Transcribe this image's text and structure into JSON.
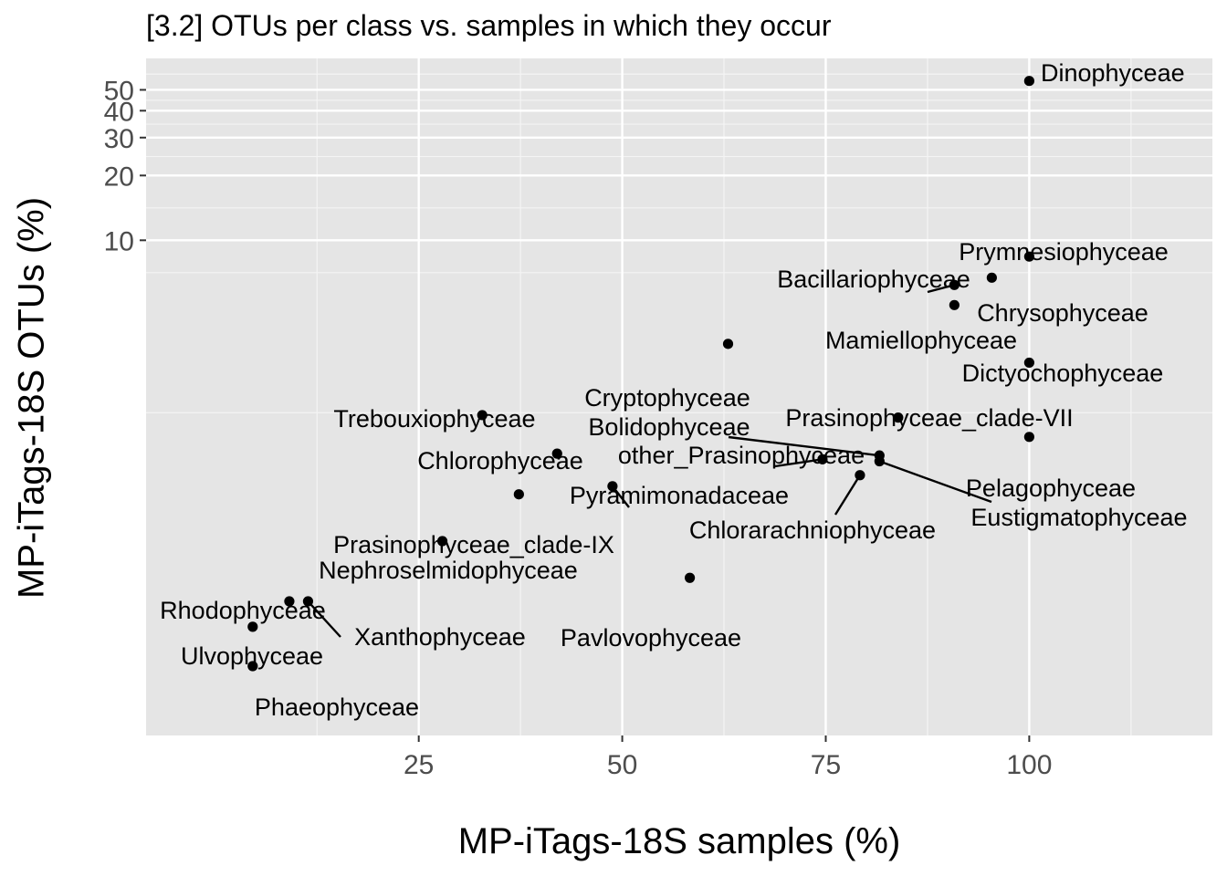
{
  "chart_data": {
    "type": "scatter",
    "title": "[3.2] OTUs per class vs. samples in which they occur",
    "xlabel": "MP-iTags-18S samples (%)",
    "ylabel": "MP-iTags-18S OTUs (%)",
    "xlim": [
      -8.5,
      122.5
    ],
    "ylim": [
      0.05,
      70
    ],
    "y_scale": "log",
    "grid": true,
    "x_ticks": [
      25,
      50,
      75,
      100
    ],
    "y_ticks": [
      10,
      20,
      30,
      40,
      50
    ],
    "points": [
      {
        "label": "Dinophyceae",
        "x": 100,
        "y": 55
      },
      {
        "label": "Prymnesiophyceae",
        "x": 100,
        "y": 8.4
      },
      {
        "label": "Bacillariophyceae",
        "x": 90.8,
        "y": 6.2
      },
      {
        "label": "Chrysophyceae",
        "x": 95.4,
        "y": 6.7
      },
      {
        "label": "Mamiellophyceae",
        "x": 90.8,
        "y": 5.0
      },
      {
        "label": "Dictyochophyceae",
        "x": 100,
        "y": 2.7
      },
      {
        "label": "Cryptophyceae",
        "x": 63,
        "y": 3.3
      },
      {
        "label": "Prasinophyceae_clade-VII",
        "x": 83.9,
        "y": 1.5
      },
      {
        "label": "Trebouxiophyceae",
        "x": 32.8,
        "y": 1.54
      },
      {
        "label": "Bolidophyceae",
        "x": 81.6,
        "y": 1.0
      },
      {
        "label": "other_Prasinophyceae",
        "x": 74.6,
        "y": 0.96
      },
      {
        "label": "Pelagophyceae",
        "x": 100,
        "y": 1.22
      },
      {
        "label": "Eustigmatophyceae",
        "x": 81.6,
        "y": 0.94
      },
      {
        "label": "Chlorophyceae",
        "x": 42,
        "y": 1.02
      },
      {
        "label": "Chlorarachniophyceae",
        "x": 79.2,
        "y": 0.81
      },
      {
        "label": "Pyramimonadaceae",
        "x": 48.8,
        "y": 0.72
      },
      {
        "label": "Prasinophyceae_clade-IX",
        "x": 37.3,
        "y": 0.66
      },
      {
        "label": "Nephroselmidophyceae",
        "x": 27.9,
        "y": 0.4
      },
      {
        "label": "Pavlovophyceae",
        "x": 58.3,
        "y": 0.27
      },
      {
        "label": "Rhodophyceae",
        "x": 9.1,
        "y": 0.21
      },
      {
        "label": "Xanthophyceae",
        "x": 11.4,
        "y": 0.21
      },
      {
        "label": "Ulvophyceae",
        "x": 4.6,
        "y": 0.16
      },
      {
        "label": "Phaeophyceae",
        "x": 4.6,
        "y": 0.105
      }
    ]
  }
}
